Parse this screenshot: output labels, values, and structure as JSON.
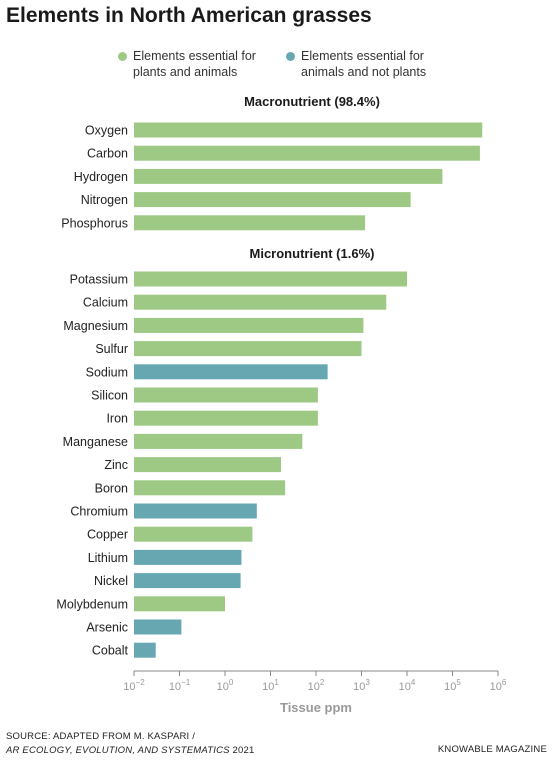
{
  "colors": {
    "essential_both": "#9dc984",
    "animals_only": "#66a7b1"
  },
  "chart_data": {
    "type": "bar",
    "orientation": "horizontal",
    "title": "Elements in North American grasses",
    "xlabel": "Tissue ppm",
    "xscale": "log",
    "xlim": [
      0.01,
      1000000
    ],
    "xticks": [
      {
        "base": "10",
        "exp": "−2"
      },
      {
        "base": "10",
        "exp": "−1"
      },
      {
        "base": "10",
        "exp": "0"
      },
      {
        "base": "10",
        "exp": "1"
      },
      {
        "base": "10",
        "exp": "2"
      },
      {
        "base": "10",
        "exp": "3"
      },
      {
        "base": "10",
        "exp": "4"
      },
      {
        "base": "10",
        "exp": "5"
      },
      {
        "base": "10",
        "exp": "6"
      }
    ],
    "legend": [
      {
        "key": "essential_both",
        "label": "Elements essential for\nplants and animals"
      },
      {
        "key": "animals_only",
        "label": "Elements essential for\nanimals and not plants"
      }
    ],
    "groups": [
      {
        "label": "Macronutrient (98.4%)",
        "items": [
          {
            "name": "Oxygen",
            "value": 450000,
            "category": "essential_both"
          },
          {
            "name": "Carbon",
            "value": 400000,
            "category": "essential_both"
          },
          {
            "name": "Hydrogen",
            "value": 60000,
            "category": "essential_both"
          },
          {
            "name": "Nitrogen",
            "value": 12000,
            "category": "essential_both"
          },
          {
            "name": "Phosphorus",
            "value": 1200,
            "category": "essential_both"
          }
        ]
      },
      {
        "label": "Micronutrient (1.6%)",
        "items": [
          {
            "name": "Potassium",
            "value": 10000,
            "category": "essential_both"
          },
          {
            "name": "Calcium",
            "value": 3500,
            "category": "essential_both"
          },
          {
            "name": "Magnesium",
            "value": 1100,
            "category": "essential_both"
          },
          {
            "name": "Sulfur",
            "value": 1000,
            "category": "essential_both"
          },
          {
            "name": "Sodium",
            "value": 180,
            "category": "animals_only"
          },
          {
            "name": "Silicon",
            "value": 110,
            "category": "essential_both"
          },
          {
            "name": "Iron",
            "value": 110,
            "category": "essential_both"
          },
          {
            "name": "Manganese",
            "value": 50,
            "category": "essential_both"
          },
          {
            "name": "Zinc",
            "value": 17,
            "category": "essential_both"
          },
          {
            "name": "Boron",
            "value": 21,
            "category": "essential_both"
          },
          {
            "name": "Chromium",
            "value": 5,
            "category": "animals_only"
          },
          {
            "name": "Copper",
            "value": 4,
            "category": "essential_both"
          },
          {
            "name": "Lithium",
            "value": 2.3,
            "category": "animals_only"
          },
          {
            "name": "Nickel",
            "value": 2.2,
            "category": "animals_only"
          },
          {
            "name": "Molybdenum",
            "value": 1,
            "category": "essential_both"
          },
          {
            "name": "Arsenic",
            "value": 0.11,
            "category": "animals_only"
          },
          {
            "name": "Cobalt",
            "value": 0.03,
            "category": "animals_only"
          }
        ]
      }
    ]
  },
  "source": {
    "line1": "SOURCE: ADAPTED FROM M. KASPARI /",
    "line2_italic": "AR ECOLOGY, EVOLUTION, AND SYSTEMATICS",
    "line2_year": " 2021"
  },
  "publisher": "KNOWABLE MAGAZINE"
}
